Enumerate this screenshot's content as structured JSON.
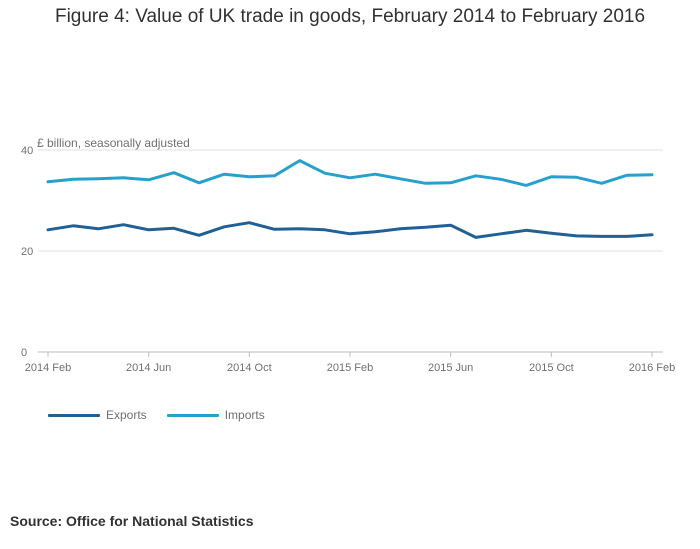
{
  "title": "Figure 4: Value of UK trade in goods, February 2014 to February 2016",
  "source": "Source: Office for National Statistics",
  "chart_data": {
    "type": "line",
    "title": "Figure 4: Value of UK trade in goods, February 2014 to February 2016",
    "ylabel": "£ billion, seasonally adjusted",
    "xlabel": "",
    "ylim": [
      0,
      40
    ],
    "y_ticks": [
      0,
      20,
      40
    ],
    "grid": true,
    "x": [
      "2014 Feb",
      "2014 Mar",
      "2014 Apr",
      "2014 May",
      "2014 Jun",
      "2014 Jul",
      "2014 Aug",
      "2014 Sep",
      "2014 Oct",
      "2014 Nov",
      "2014 Dec",
      "2015 Jan",
      "2015 Feb",
      "2015 Mar",
      "2015 Apr",
      "2015 May",
      "2015 Jun",
      "2015 Jul",
      "2015 Aug",
      "2015 Sep",
      "2015 Oct",
      "2015 Nov",
      "2015 Dec",
      "2016 Jan",
      "2016 Feb"
    ],
    "x_tick_labels": [
      "2014 Feb",
      "2014 Jun",
      "2014 Oct",
      "2015 Feb",
      "2015 Jun",
      "2015 Oct",
      "2016 Feb"
    ],
    "x_tick_indices": [
      0,
      4,
      8,
      12,
      16,
      20,
      24
    ],
    "series": [
      {
        "name": "Exports",
        "color": "#206095",
        "values": [
          24.2,
          25.0,
          24.4,
          25.2,
          24.2,
          24.5,
          23.1,
          24.8,
          25.6,
          24.3,
          24.4,
          24.2,
          23.4,
          23.8,
          24.4,
          24.7,
          25.1,
          22.7,
          23.4,
          24.1,
          23.5,
          23.0,
          22.9,
          22.9,
          23.2
        ]
      },
      {
        "name": "Imports",
        "color": "#27a0cc",
        "values": [
          33.7,
          34.2,
          34.3,
          34.5,
          34.1,
          35.5,
          33.5,
          35.2,
          34.7,
          34.9,
          37.9,
          35.4,
          34.5,
          35.2,
          34.3,
          33.4,
          33.5,
          34.9,
          34.2,
          33.0,
          34.7,
          34.6,
          33.4,
          35.0,
          35.1
        ]
      }
    ],
    "legend_position": "bottom-left"
  }
}
